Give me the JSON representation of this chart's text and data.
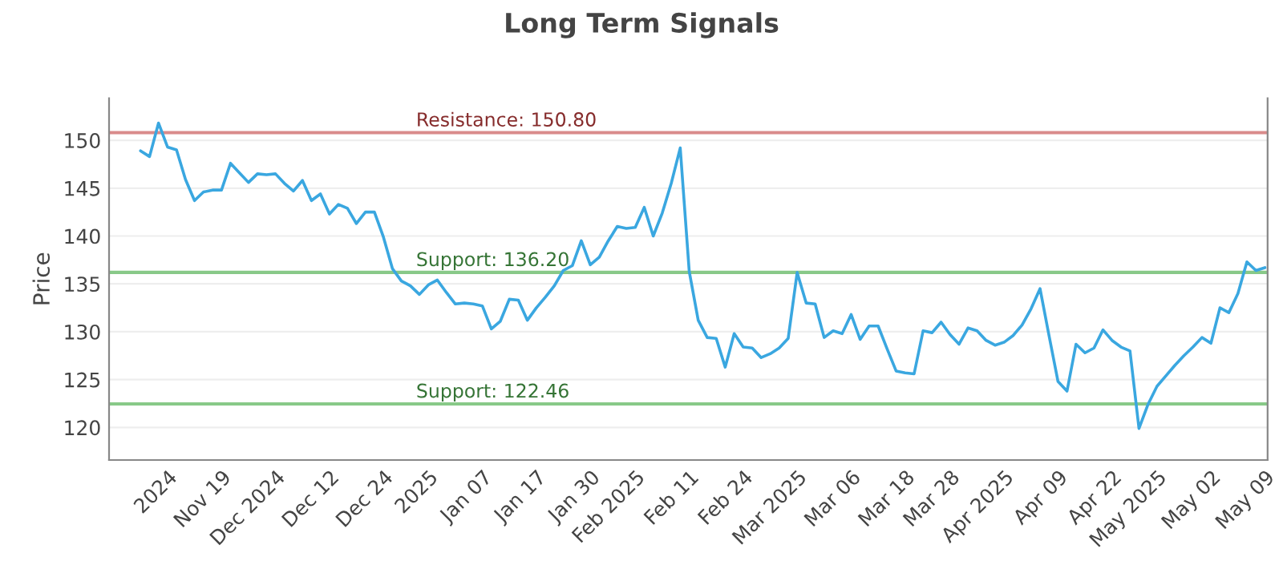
{
  "chart_data": {
    "type": "line",
    "title": "Long Term Signals",
    "ylabel": "Price",
    "categories": [
      null,
      null,
      null,
      "2024",
      null,
      null,
      null,
      null,
      null,
      "Nov 19",
      null,
      null,
      null,
      null,
      null,
      "Dec 2024",
      null,
      null,
      null,
      null,
      null,
      "Dec 12",
      null,
      null,
      null,
      null,
      null,
      "Dec 24",
      null,
      null,
      null,
      null,
      "2025",
      null,
      null,
      null,
      null,
      null,
      "Jan 07",
      null,
      null,
      null,
      null,
      null,
      "Jan 17",
      null,
      null,
      null,
      null,
      null,
      "Jan 30",
      null,
      null,
      null,
      null,
      "Feb 2025",
      null,
      null,
      null,
      null,
      null,
      "Feb 11",
      null,
      null,
      null,
      null,
      null,
      "Feb 24",
      null,
      null,
      null,
      null,
      null,
      "Mar 2025",
      null,
      null,
      null,
      null,
      null,
      "Mar 06",
      null,
      null,
      null,
      null,
      null,
      "Mar 18",
      null,
      null,
      null,
      null,
      "Mar 28",
      null,
      null,
      null,
      null,
      null,
      "Apr 2025",
      null,
      null,
      null,
      null,
      null,
      "Apr 09",
      null,
      null,
      null,
      null,
      null,
      "Apr 22",
      null,
      null,
      null,
      null,
      "May 2025",
      null,
      null,
      null,
      null,
      null,
      "May 02",
      null,
      null,
      null,
      null,
      null,
      "May 09"
    ],
    "series": [
      {
        "color": "#3aa7e0",
        "values": [
          148.9,
          148.3,
          151.8,
          149.3,
          149.0,
          145.9,
          143.7,
          144.6,
          144.8,
          144.8,
          147.6,
          146.6,
          145.6,
          146.5,
          146.4,
          146.5,
          145.5,
          144.7,
          145.8,
          143.7,
          144.4,
          142.3,
          143.3,
          142.9,
          141.3,
          142.5,
          142.5,
          139.9,
          136.6,
          135.3,
          134.8,
          133.9,
          134.9,
          135.4,
          134.1,
          132.9,
          133.0,
          132.9,
          132.7,
          130.3,
          131.1,
          133.4,
          133.3,
          131.2,
          132.5,
          133.6,
          134.8,
          136.4,
          136.9,
          139.5,
          137.0,
          137.8,
          139.5,
          141.0,
          140.8,
          140.9,
          143.0,
          140.0,
          142.4,
          145.5,
          149.2,
          136.3,
          131.2,
          129.4,
          129.3,
          126.3,
          129.8,
          128.4,
          128.3,
          127.3,
          127.7,
          128.3,
          129.3,
          136.2,
          133.0,
          132.9,
          129.4,
          130.1,
          129.8,
          131.8,
          129.2,
          130.6,
          130.6,
          128.2,
          125.9,
          125.7,
          125.6,
          130.1,
          129.9,
          131.0,
          129.7,
          128.7,
          130.4,
          130.1,
          129.1,
          128.6,
          128.9,
          129.6,
          130.7,
          132.4,
          134.5,
          129.6,
          124.8,
          123.8,
          128.7,
          127.8,
          128.3,
          130.2,
          129.1,
          128.4,
          128.0,
          119.9,
          122.4,
          124.3,
          125.4,
          126.5,
          127.5,
          128.4,
          129.4,
          128.8,
          132.5,
          132.0,
          134.0,
          137.3,
          136.4,
          136.7
        ]
      }
    ],
    "ylim": [
      116.6,
      154.4
    ],
    "yticks": [
      120,
      125,
      130,
      135,
      140,
      145,
      150
    ],
    "grid": "y",
    "ref_lines": [
      {
        "axis": "y",
        "value": 150.8,
        "label": "Resistance: 150.80",
        "color": "#d98b8b"
      },
      {
        "axis": "y",
        "value": 136.2,
        "label": "Support: 136.20",
        "color": "#88c988"
      },
      {
        "axis": "y",
        "value": 122.46,
        "label": "Support: 122.46",
        "color": "#88c988"
      }
    ]
  }
}
